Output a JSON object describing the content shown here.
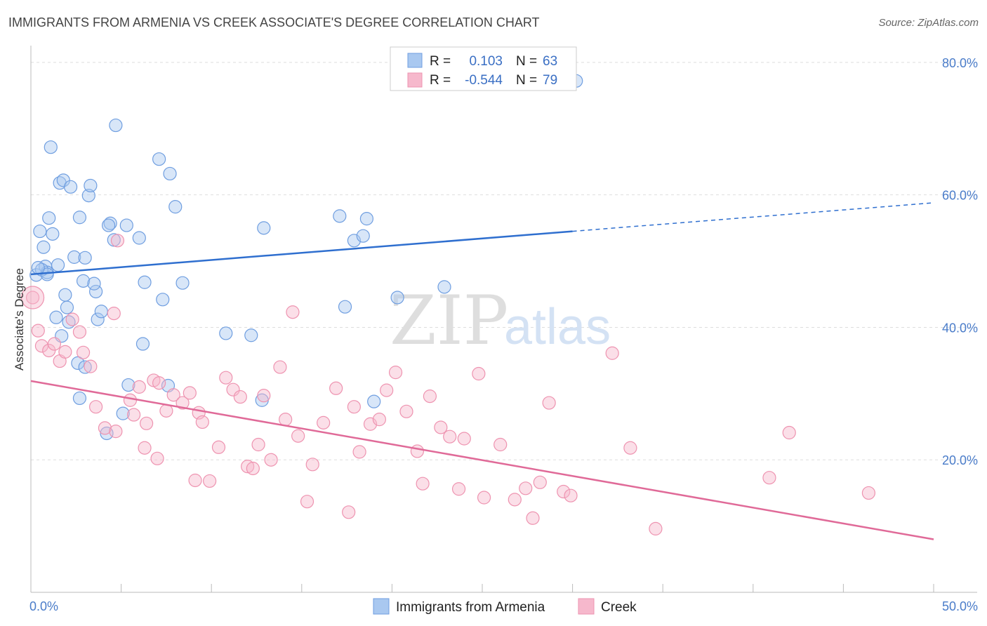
{
  "title": "IMMIGRANTS FROM ARMENIA VS CREEK ASSOCIATE'S DEGREE CORRELATION CHART",
  "source": "Source: ZipAtlas.com",
  "watermark": {
    "zip": "ZIP",
    "atlas": "atlas"
  },
  "colors": {
    "blue_fill": "#a9c8f0",
    "blue_stroke": "#6f9ee0",
    "blue_line": "#2f6fcf",
    "pink_fill": "#f6b8cc",
    "pink_stroke": "#ee93b0",
    "pink_line": "#e06a98",
    "grid": "#dddddd",
    "axis_text": "#4a7cc9"
  },
  "legend": {
    "rows": [
      {
        "r_label": "R =",
        "r_value": "0.103",
        "n_label": "N =",
        "n_value": "63"
      },
      {
        "r_label": "R =",
        "r_value": "-0.544",
        "n_label": "N =",
        "n_value": "79"
      }
    ]
  },
  "chart_data": {
    "type": "scatter",
    "xlabel": "",
    "ylabel": "Associate's Degree",
    "xlim": [
      0,
      50
    ],
    "ylim": [
      0,
      82
    ],
    "x_tick_labels": [
      {
        "value": 0,
        "label": "0.0%"
      },
      {
        "value": 50,
        "label": "50.0%"
      }
    ],
    "y_tick_labels": [
      {
        "value": 20,
        "label": "20.0%"
      },
      {
        "value": 40,
        "label": "40.0%"
      },
      {
        "value": 60,
        "label": "60.0%"
      },
      {
        "value": 80,
        "label": "80.0%"
      }
    ],
    "y_gridlines": [
      20,
      40,
      60,
      80
    ],
    "series": [
      {
        "name": "Immigrants from Armenia",
        "color": "#6f9ee0",
        "trend": {
          "x0": 0,
          "y0": 48.0,
          "x1": 30,
          "y1": 54.5,
          "dashed_to_x": 50,
          "dashed_to_y": 58.8
        },
        "points": [
          [
            0.3,
            47.9
          ],
          [
            0.5,
            54.5
          ],
          [
            0.7,
            52.1
          ],
          [
            0.8,
            49.2
          ],
          [
            0.9,
            48.3
          ],
          [
            0.6,
            48.7
          ],
          [
            1.0,
            56.5
          ],
          [
            1.2,
            54.1
          ],
          [
            1.1,
            67.2
          ],
          [
            1.6,
            61.8
          ],
          [
            1.8,
            62.2
          ],
          [
            1.4,
            41.5
          ],
          [
            1.9,
            44.9
          ],
          [
            2.0,
            43.0
          ],
          [
            1.7,
            38.7
          ],
          [
            2.2,
            61.2
          ],
          [
            2.7,
            56.6
          ],
          [
            2.4,
            50.6
          ],
          [
            3.0,
            50.5
          ],
          [
            2.9,
            47.0
          ],
          [
            3.2,
            59.9
          ],
          [
            3.3,
            61.4
          ],
          [
            3.6,
            45.4
          ],
          [
            3.7,
            41.2
          ],
          [
            3.9,
            42.4
          ],
          [
            2.6,
            34.6
          ],
          [
            3.0,
            34.0
          ],
          [
            2.7,
            29.3
          ],
          [
            4.4,
            55.7
          ],
          [
            4.3,
            55.4
          ],
          [
            4.6,
            53.2
          ],
          [
            4.2,
            24.0
          ],
          [
            3.5,
            46.6
          ],
          [
            4.7,
            70.5
          ],
          [
            5.3,
            55.4
          ],
          [
            5.1,
            27.0
          ],
          [
            5.4,
            31.3
          ],
          [
            6.0,
            53.5
          ],
          [
            6.3,
            46.8
          ],
          [
            6.2,
            37.5
          ],
          [
            7.1,
            65.4
          ],
          [
            7.7,
            63.2
          ],
          [
            7.3,
            44.2
          ],
          [
            7.6,
            31.2
          ],
          [
            8.0,
            58.2
          ],
          [
            8.4,
            46.7
          ],
          [
            10.8,
            39.1
          ],
          [
            12.2,
            38.8
          ],
          [
            12.8,
            29.0
          ],
          [
            12.9,
            55.0
          ],
          [
            17.1,
            56.8
          ],
          [
            17.4,
            43.1
          ],
          [
            17.9,
            53.1
          ],
          [
            18.4,
            53.8
          ],
          [
            18.6,
            56.4
          ],
          [
            19.0,
            28.8
          ],
          [
            20.3,
            44.5
          ],
          [
            22.9,
            46.1
          ],
          [
            30.2,
            77.2
          ],
          [
            1.5,
            49.4
          ],
          [
            0.9,
            48.0
          ],
          [
            2.1,
            40.8
          ],
          [
            0.4,
            49.0
          ]
        ]
      },
      {
        "name": "Creek",
        "color": "#ee93b0",
        "trend": {
          "x0": 0,
          "y0": 31.9,
          "x1": 50,
          "y1": 8.0
        },
        "points": [
          [
            0.1,
            44.5
          ],
          [
            0.4,
            39.5
          ],
          [
            0.6,
            37.2
          ],
          [
            1.0,
            36.5
          ],
          [
            1.3,
            37.5
          ],
          [
            1.6,
            34.9
          ],
          [
            1.9,
            36.3
          ],
          [
            2.3,
            41.2
          ],
          [
            2.7,
            39.3
          ],
          [
            2.9,
            36.2
          ],
          [
            3.3,
            34.1
          ],
          [
            3.6,
            28.0
          ],
          [
            4.1,
            24.8
          ],
          [
            4.6,
            42.1
          ],
          [
            4.7,
            24.3
          ],
          [
            4.8,
            53.1
          ],
          [
            5.5,
            29.0
          ],
          [
            5.7,
            26.8
          ],
          [
            6.0,
            31.0
          ],
          [
            6.3,
            21.8
          ],
          [
            6.4,
            25.5
          ],
          [
            6.8,
            32.0
          ],
          [
            7.0,
            20.2
          ],
          [
            7.1,
            31.6
          ],
          [
            7.5,
            27.4
          ],
          [
            7.9,
            29.8
          ],
          [
            8.4,
            28.6
          ],
          [
            8.8,
            30.1
          ],
          [
            9.1,
            16.9
          ],
          [
            9.3,
            27.1
          ],
          [
            9.5,
            25.7
          ],
          [
            9.9,
            16.8
          ],
          [
            10.4,
            21.9
          ],
          [
            10.8,
            32.4
          ],
          [
            11.2,
            30.6
          ],
          [
            11.6,
            29.5
          ],
          [
            12.0,
            19.0
          ],
          [
            12.3,
            18.7
          ],
          [
            12.6,
            22.3
          ],
          [
            12.9,
            29.7
          ],
          [
            13.3,
            20.0
          ],
          [
            13.8,
            34.0
          ],
          [
            14.1,
            26.1
          ],
          [
            14.5,
            42.3
          ],
          [
            14.8,
            23.6
          ],
          [
            15.3,
            13.7
          ],
          [
            15.6,
            19.3
          ],
          [
            16.2,
            25.6
          ],
          [
            16.9,
            30.8
          ],
          [
            17.6,
            12.1
          ],
          [
            17.9,
            28.0
          ],
          [
            18.2,
            21.2
          ],
          [
            18.8,
            25.4
          ],
          [
            19.3,
            26.1
          ],
          [
            19.7,
            30.5
          ],
          [
            20.2,
            33.2
          ],
          [
            20.8,
            27.3
          ],
          [
            21.4,
            21.3
          ],
          [
            21.7,
            16.4
          ],
          [
            22.1,
            29.6
          ],
          [
            22.7,
            24.9
          ],
          [
            23.2,
            23.5
          ],
          [
            23.7,
            15.6
          ],
          [
            24.0,
            23.2
          ],
          [
            24.8,
            33.0
          ],
          [
            25.1,
            14.3
          ],
          [
            26.0,
            22.3
          ],
          [
            26.8,
            14.0
          ],
          [
            27.4,
            15.7
          ],
          [
            27.8,
            11.2
          ],
          [
            28.2,
            16.6
          ],
          [
            28.7,
            28.6
          ],
          [
            29.5,
            15.2
          ],
          [
            29.9,
            14.6
          ],
          [
            32.2,
            36.1
          ],
          [
            33.2,
            21.8
          ],
          [
            34.6,
            9.6
          ],
          [
            40.9,
            17.3
          ],
          [
            42.0,
            24.1
          ],
          [
            46.4,
            15.0
          ]
        ]
      }
    ],
    "legend_placement": "bottom"
  }
}
